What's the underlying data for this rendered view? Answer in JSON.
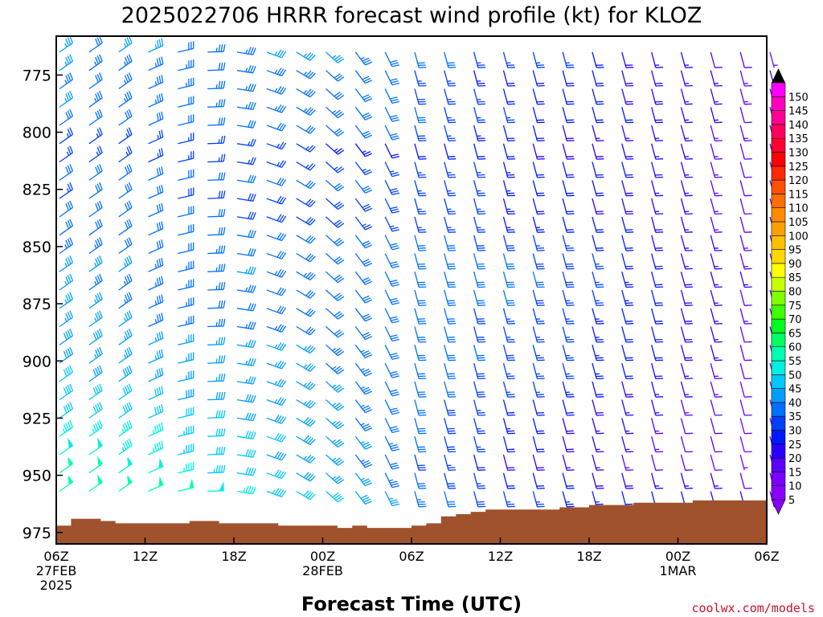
{
  "title": "2025022706 HRRR forecast wind profile (kt) for KLOZ",
  "xlabel": "Forecast Time (UTC)",
  "credit": "coolwx.com/models",
  "chart_data": {
    "type": "wind_barb_timeheight",
    "title": "2025022706 HRRR forecast wind profile (kt) for KLOZ",
    "xlabel": "Forecast Time (UTC)",
    "ylabel": "",
    "y_axis": {
      "units": "hPa",
      "ylim": [
        980,
        758
      ],
      "reversed": true,
      "ticks": [
        775,
        800,
        825,
        850,
        875,
        900,
        925,
        950,
        975
      ]
    },
    "x_axis": {
      "forecast_hours": [
        0,
        48
      ],
      "hour_step": 2,
      "ticks": [
        {
          "hour": 0,
          "line1": "06Z",
          "line2": "27FEB",
          "line3": "2025"
        },
        {
          "hour": 6,
          "line1": "12Z",
          "line2": "",
          "line3": ""
        },
        {
          "hour": 12,
          "line1": "18Z",
          "line2": "",
          "line3": ""
        },
        {
          "hour": 18,
          "line1": "00Z",
          "line2": "28FEB",
          "line3": ""
        },
        {
          "hour": 24,
          "line1": "06Z",
          "line2": "",
          "line3": ""
        },
        {
          "hour": 30,
          "line1": "12Z",
          "line2": "",
          "line3": ""
        },
        {
          "hour": 36,
          "line1": "18Z",
          "line2": "",
          "line3": ""
        },
        {
          "hour": 42,
          "line1": "00Z",
          "line2": "1MAR",
          "line3": ""
        },
        {
          "hour": 48,
          "line1": "06Z",
          "line2": "",
          "line3": ""
        }
      ]
    },
    "pressure_levels": [
      765,
      773,
      781,
      789,
      797,
      805,
      813,
      821,
      829,
      837,
      845,
      853,
      861,
      869,
      877,
      885,
      893,
      901,
      909,
      917,
      925,
      933,
      941,
      949,
      957,
      965
    ],
    "surface_pressure": [
      972,
      969,
      969,
      970,
      971,
      971,
      971,
      971,
      971,
      970,
      970,
      971,
      971,
      971,
      971,
      972,
      972,
      972,
      972,
      973,
      972,
      973,
      973,
      973,
      972,
      971,
      968,
      967,
      966,
      965,
      965,
      965,
      965,
      965,
      964,
      964,
      963,
      963,
      963,
      962,
      962,
      962,
      962,
      961,
      961,
      961,
      961,
      961,
      961
    ],
    "wind_speed_kt": [
      [
        35,
        32,
        35,
        35,
        32,
        33,
        33,
        35,
        35,
        35,
        33,
        32,
        30,
        30,
        26,
        26,
        25,
        25,
        20,
        18,
        16,
        15,
        12,
        10,
        7
      ],
      [
        35,
        34,
        34,
        34,
        33,
        32,
        33,
        33,
        33,
        32,
        30,
        30,
        27,
        26,
        24,
        22,
        22,
        22,
        21,
        19,
        18,
        16,
        15,
        13,
        15
      ],
      [
        33,
        32,
        33,
        33,
        33,
        33,
        33,
        33,
        33,
        32,
        32,
        30,
        28,
        26,
        25,
        22,
        22,
        20,
        20,
        19,
        18,
        16,
        15,
        13,
        12
      ],
      [
        35,
        34,
        34,
        33,
        32,
        33,
        33,
        33,
        33,
        33,
        32,
        30,
        30,
        27,
        25,
        25,
        22,
        20,
        20,
        20,
        18,
        16,
        15,
        11,
        10
      ],
      [
        30,
        30,
        30,
        30,
        30,
        30,
        30,
        30,
        32,
        32,
        30,
        30,
        28,
        25,
        24,
        22,
        20,
        18,
        16,
        15,
        16,
        15,
        14,
        13,
        10
      ],
      [
        25,
        25,
        25,
        25,
        25,
        25,
        25,
        26,
        26,
        24,
        24,
        22,
        22,
        22,
        22,
        20,
        19,
        19,
        18,
        18,
        16,
        15,
        14,
        11,
        10
      ],
      [
        25,
        25,
        25,
        25,
        25,
        25,
        25,
        25,
        25,
        25,
        25,
        25,
        25,
        25,
        25,
        24,
        22,
        22,
        20,
        20,
        18,
        17,
        14,
        11,
        9
      ],
      [
        30,
        30,
        30,
        30,
        30,
        30,
        30,
        30,
        30,
        30,
        30,
        29,
        27,
        26,
        25,
        24,
        22,
        22,
        20,
        18,
        16,
        15,
        14,
        12,
        10
      ],
      [
        26,
        30,
        30,
        30,
        29,
        29,
        29,
        29,
        29,
        28,
        28,
        28,
        27,
        26,
        25,
        24,
        22,
        21,
        19,
        18,
        17,
        16,
        14,
        12,
        8
      ],
      [
        30,
        30,
        30,
        30,
        30,
        30,
        29,
        29,
        29,
        29,
        27,
        27,
        26,
        26,
        25,
        24,
        24,
        22,
        21,
        20,
        18,
        16,
        14,
        12,
        11
      ],
      [
        32,
        32,
        32,
        32,
        32,
        32,
        32,
        32,
        32,
        32,
        32,
        30,
        30,
        30,
        29,
        28,
        27,
        25,
        22,
        20,
        18,
        16,
        15,
        13,
        14
      ],
      [
        33,
        33,
        32,
        32,
        32,
        33,
        32,
        32,
        31,
        31,
        32,
        31,
        31,
        30,
        30,
        30,
        28,
        28,
        25,
        22,
        20,
        17,
        16,
        14,
        12
      ],
      [
        35,
        35,
        35,
        33,
        33,
        33,
        35,
        33,
        33,
        32,
        32,
        32,
        32,
        30,
        32,
        30,
        30,
        28,
        27,
        24,
        21,
        19,
        17,
        15,
        11
      ],
      [
        35,
        34,
        34,
        34,
        34,
        33,
        33,
        32,
        32,
        32,
        32,
        32,
        32,
        30,
        30,
        30,
        29,
        27,
        26,
        23,
        21,
        19,
        16,
        12,
        10
      ],
      [
        35,
        35,
        33,
        33,
        33,
        32,
        32,
        32,
        32,
        30,
        30,
        30,
        30,
        30,
        28,
        27,
        26,
        25,
        24,
        22,
        20,
        18,
        16,
        13,
        10
      ],
      [
        35,
        35,
        35,
        33,
        33,
        33,
        33,
        33,
        32,
        32,
        30,
        30,
        30,
        30,
        28,
        27,
        26,
        25,
        23,
        22,
        20,
        18,
        16,
        12,
        10
      ],
      [
        38,
        38,
        36,
        36,
        35,
        35,
        35,
        35,
        35,
        33,
        33,
        32,
        32,
        30,
        30,
        28,
        26,
        25,
        23,
        22,
        20,
        18,
        15,
        10,
        7
      ],
      [
        38,
        36,
        35,
        35,
        35,
        35,
        35,
        35,
        35,
        33,
        33,
        32,
        30,
        30,
        28,
        26,
        25,
        25,
        23,
        20,
        18,
        16,
        14,
        10,
        6
      ],
      [
        40,
        38,
        38,
        36,
        36,
        35,
        35,
        35,
        35,
        35,
        33,
        32,
        30,
        30,
        28,
        26,
        25,
        23,
        22,
        18,
        16,
        15,
        13,
        9,
        5
      ],
      [
        40,
        40,
        40,
        40,
        38,
        38,
        38,
        36,
        35,
        35,
        33,
        32,
        30,
        28,
        25,
        22,
        21,
        20,
        19,
        17,
        16,
        14,
        12,
        10,
        6
      ],
      [
        42,
        42,
        42,
        40,
        40,
        40,
        38,
        38,
        38,
        35,
        33,
        32,
        30,
        28,
        26,
        24,
        21,
        19,
        17,
        15,
        14,
        12,
        11,
        9,
        5
      ],
      [
        45,
        45,
        45,
        45,
        43,
        42,
        42,
        40,
        38,
        36,
        35,
        33,
        30,
        28,
        25,
        21,
        20,
        19,
        17,
        15,
        13,
        10,
        10,
        8,
        7
      ],
      [
        48,
        48,
        46,
        46,
        44,
        42,
        40,
        38,
        36,
        35,
        33,
        30,
        28,
        25,
        22,
        19,
        18,
        16,
        15,
        14,
        12,
        10,
        8,
        7,
        6
      ],
      [
        50,
        50,
        48,
        48,
        46,
        44,
        42,
        40,
        38,
        36,
        35,
        33,
        30,
        28,
        25,
        22,
        20,
        20,
        19,
        18,
        16,
        15,
        15,
        12,
        10
      ],
      [
        52,
        52,
        52,
        50,
        50,
        48,
        46,
        44,
        42,
        40,
        38,
        35,
        33,
        30,
        28,
        26,
        25,
        24,
        23,
        22,
        21,
        20,
        19,
        17,
        14
      ]
    ]
  }
}
